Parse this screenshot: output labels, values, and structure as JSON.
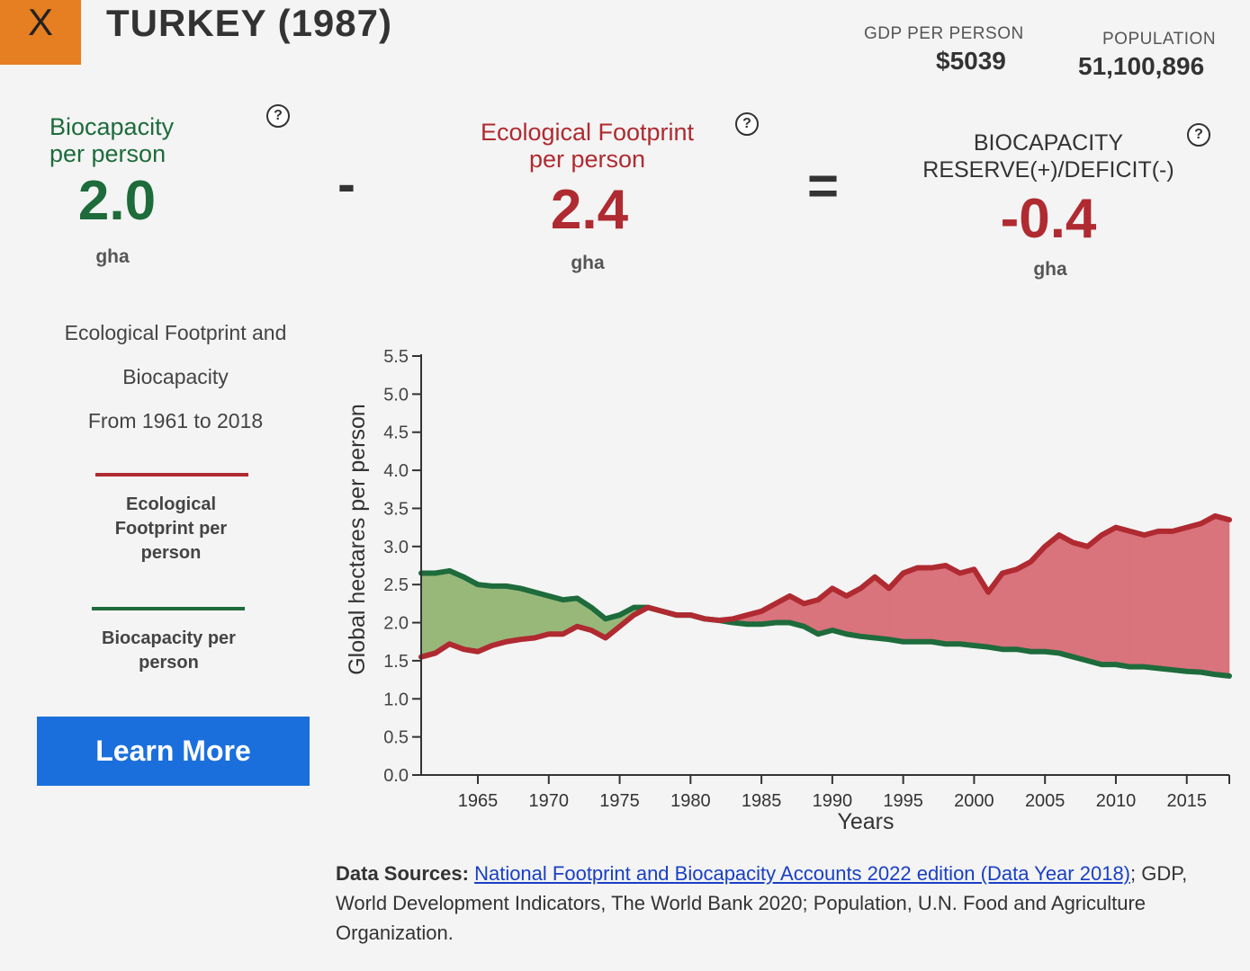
{
  "header": {
    "close_label": "X",
    "title": "TURKEY (1987)",
    "gdp_label": "GDP PER PERSON",
    "gdp_value": "$5039",
    "population_label": "POPULATION",
    "population_value": "51,100,896"
  },
  "metrics": {
    "biocapacity": {
      "label_line1": "Biocapacity",
      "label_line2": "per person",
      "value": "2.0",
      "unit": "gha",
      "color": "#1e6b3c"
    },
    "operator_minus": "-",
    "footprint": {
      "label_line1": "Ecological Footprint",
      "label_line2": "per person",
      "value": "2.4",
      "unit": "gha",
      "color": "#b02a31"
    },
    "operator_equals": "=",
    "reserve": {
      "label_line1": "BIOCAPACITY",
      "label_line2": "RESERVE(+)/DEFICIT(-)",
      "value": "-0.4",
      "unit": "gha",
      "color": "#b02a31"
    },
    "help_glyph": "?"
  },
  "legend": {
    "title_line1": "Ecological Footprint and",
    "title_line2": "Biocapacity",
    "title_line3": "From 1961 to 2018",
    "footprint_line1": "Ecological",
    "footprint_line2": "Footprint per",
    "footprint_line3": "person",
    "biocapacity_line1": "Biocapacity per",
    "biocapacity_line2": "person"
  },
  "learn_more_label": "Learn More",
  "sources": {
    "prefix": "Data Sources:",
    "link_text": "National Footprint and Biocapacity Accounts 2022 edition (Data Year 2018)",
    "separator": ";",
    "rest": "GDP, World Development Indicators, The World Bank 2020; Population, U.N. Food and Agriculture Organization."
  },
  "chart_data": {
    "type": "area",
    "xlabel": "Years",
    "ylabel": "Global hectares per person",
    "xlim": [
      1961,
      2018
    ],
    "ylim": [
      0,
      5.5
    ],
    "y_ticks": [
      "0.0",
      "0.5",
      "1.0",
      "1.5",
      "2.0",
      "2.5",
      "3.0",
      "3.5",
      "4.0",
      "4.5",
      "5.0",
      "5.5"
    ],
    "x_ticks": [
      "1965",
      "1970",
      "1975",
      "1980",
      "1985",
      "1990",
      "1995",
      "2000",
      "2005",
      "2010",
      "2015"
    ],
    "x_tick_values": [
      1965,
      1970,
      1975,
      1980,
      1985,
      1990,
      1995,
      2000,
      2005,
      2010,
      2015
    ],
    "grid": false,
    "colors": {
      "footprint": "#b02a31",
      "biocapacity": "#1e6b3c",
      "deficit_fill": "#d9737c",
      "reserve_fill": "#98b87a"
    },
    "series": [
      {
        "name": "Ecological Footprint per person",
        "x": [
          1961,
          1962,
          1963,
          1964,
          1965,
          1966,
          1967,
          1968,
          1969,
          1970,
          1971,
          1972,
          1973,
          1974,
          1975,
          1976,
          1977,
          1978,
          1979,
          1980,
          1981,
          1982,
          1983,
          1984,
          1985,
          1986,
          1987,
          1988,
          1989,
          1990,
          1991,
          1992,
          1993,
          1994,
          1995,
          1996,
          1997,
          1998,
          1999,
          2000,
          2001,
          2002,
          2003,
          2004,
          2005,
          2006,
          2007,
          2008,
          2009,
          2010,
          2011,
          2012,
          2013,
          2014,
          2015,
          2016,
          2017,
          2018
        ],
        "values": [
          1.55,
          1.6,
          1.72,
          1.65,
          1.62,
          1.7,
          1.75,
          1.78,
          1.8,
          1.85,
          1.85,
          1.95,
          1.9,
          1.8,
          1.95,
          2.1,
          2.2,
          2.15,
          2.1,
          2.1,
          2.05,
          2.03,
          2.05,
          2.1,
          2.15,
          2.25,
          2.35,
          2.25,
          2.3,
          2.45,
          2.35,
          2.45,
          2.6,
          2.45,
          2.65,
          2.72,
          2.72,
          2.75,
          2.65,
          2.7,
          2.4,
          2.65,
          2.7,
          2.8,
          3.0,
          3.15,
          3.05,
          3.0,
          3.15,
          3.25,
          3.2,
          3.15,
          3.2,
          3.2,
          3.25,
          3.3,
          3.4,
          3.35
        ]
      },
      {
        "name": "Biocapacity per person",
        "x": [
          1961,
          1962,
          1963,
          1964,
          1965,
          1966,
          1967,
          1968,
          1969,
          1970,
          1971,
          1972,
          1973,
          1974,
          1975,
          1976,
          1977,
          1978,
          1979,
          1980,
          1981,
          1982,
          1983,
          1984,
          1985,
          1986,
          1987,
          1988,
          1989,
          1990,
          1991,
          1992,
          1993,
          1994,
          1995,
          1996,
          1997,
          1998,
          1999,
          2000,
          2001,
          2002,
          2003,
          2004,
          2005,
          2006,
          2007,
          2008,
          2009,
          2010,
          2011,
          2012,
          2013,
          2014,
          2015,
          2016,
          2017,
          2018
        ],
        "values": [
          2.65,
          2.65,
          2.68,
          2.6,
          2.5,
          2.48,
          2.48,
          2.45,
          2.4,
          2.35,
          2.3,
          2.32,
          2.2,
          2.05,
          2.1,
          2.2,
          2.2,
          2.15,
          2.1,
          2.1,
          2.05,
          2.03,
          2.0,
          1.98,
          1.98,
          2.0,
          2.0,
          1.95,
          1.85,
          1.9,
          1.85,
          1.82,
          1.8,
          1.78,
          1.75,
          1.75,
          1.75,
          1.72,
          1.72,
          1.7,
          1.68,
          1.65,
          1.65,
          1.62,
          1.62,
          1.6,
          1.55,
          1.5,
          1.45,
          1.45,
          1.42,
          1.42,
          1.4,
          1.38,
          1.36,
          1.35,
          1.32,
          1.3
        ]
      }
    ]
  }
}
